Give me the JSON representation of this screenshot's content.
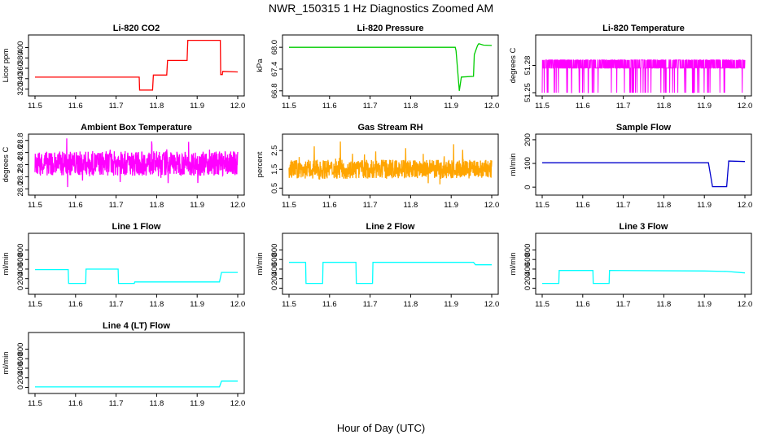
{
  "figure": {
    "title": "NWR_150315  1 Hz Diagnostics Zoomed AM",
    "xlabel": "Hour of Day (UTC)"
  },
  "chart_data": [
    {
      "type": "line",
      "title": "Li-820 CO2",
      "ylabel": "Licor ppm",
      "color": "#ff0000",
      "xlim": [
        11.5,
        12.0
      ],
      "ylim": [
        313,
        418
      ],
      "yticks": [
        "320",
        "340",
        "360",
        "380",
        "400"
      ],
      "xticks": [
        "11.5",
        "11.6",
        "11.7",
        "11.8",
        "11.9",
        "12.0"
      ],
      "series": [
        {
          "x": [
            11.5,
            11.69,
            11.757,
            11.758,
            11.79,
            11.792,
            11.825,
            11.827,
            11.875,
            11.877,
            11.957,
            11.958,
            11.962,
            11.963,
            12.0
          ],
          "y": [
            343,
            343,
            343,
            318,
            318,
            347,
            347,
            375,
            375,
            414,
            414,
            348,
            348,
            354,
            353
          ]
        }
      ]
    },
    {
      "type": "line",
      "title": "Li-820 Pressure",
      "ylabel": "kPa",
      "color": "#00cc00",
      "xlim": [
        11.5,
        12.0
      ],
      "ylim": [
        66.75,
        68.25
      ],
      "yticks": [
        "66.8",
        "67.4",
        "68.0"
      ],
      "xticks": [
        "11.5",
        "11.6",
        "11.7",
        "11.8",
        "11.9",
        "12.0"
      ],
      "series": [
        {
          "x": [
            11.5,
            11.91,
            11.912,
            11.92,
            11.925,
            11.955,
            11.957,
            11.965,
            11.968,
            11.98,
            12.0
          ],
          "y": [
            68.0,
            68.0,
            67.9,
            66.8,
            67.18,
            67.2,
            67.8,
            68.05,
            68.1,
            68.06,
            68.05
          ]
        }
      ]
    },
    {
      "type": "line",
      "title": "Li-820 Temperature",
      "ylabel": "degrees C",
      "color": "#ff00ff",
      "xlim": [
        11.5,
        12.0
      ],
      "ylim": [
        51.25,
        51.31
      ],
      "yticks": [
        "51.25",
        "51.28"
      ],
      "xticks": [
        "11.5",
        "11.6",
        "11.7",
        "11.8",
        "11.9",
        "12.0"
      ],
      "series": [
        {
          "x": [
            11.5,
            12.0
          ],
          "y": [
            51.28,
            51.28
          ]
        }
      ]
    },
    {
      "type": "line",
      "title": "Ambient Box Temperature",
      "ylabel": "degrees C",
      "color": "#ff00ff",
      "xlim": [
        11.5,
        12.0
      ],
      "ylim": [
        27.95,
        28.85
      ],
      "yticks": [
        "28.0",
        "28.2",
        "28.4",
        "28.6",
        "28.8"
      ],
      "xticks": [
        "11.5",
        "11.6",
        "11.7",
        "11.8",
        "11.9",
        "12.0"
      ],
      "series": [
        {
          "x": [
            11.5,
            12.0
          ],
          "y": [
            28.42,
            28.42
          ]
        }
      ]
    },
    {
      "type": "line",
      "title": "Gas Stream RH",
      "ylabel": "percent",
      "color": "#ffa500",
      "xlim": [
        11.5,
        12.0
      ],
      "ylim": [
        0.3,
        3.2
      ],
      "yticks": [
        "0.5",
        "1.5",
        "2.5"
      ],
      "xticks": [
        "11.5",
        "11.6",
        "11.7",
        "11.8",
        "11.9",
        "12.0"
      ],
      "series": [
        {
          "x": [
            11.5,
            12.0
          ],
          "y": [
            1.5,
            1.5
          ]
        }
      ]
    },
    {
      "type": "line",
      "title": "Sample Flow",
      "ylabel": "ml/min",
      "color": "#0000cd",
      "xlim": [
        11.5,
        12.0
      ],
      "ylim": [
        -20,
        210
      ],
      "yticks": [
        "0",
        "100",
        "200"
      ],
      "xticks": [
        "11.5",
        "11.6",
        "11.7",
        "11.8",
        "11.9",
        "12.0"
      ],
      "series": [
        {
          "x": [
            11.5,
            11.91,
            11.92,
            11.955,
            11.96,
            12.0
          ],
          "y": [
            103,
            103,
            2,
            2,
            110,
            108
          ]
        }
      ]
    },
    {
      "type": "line",
      "title": "Line 1 Flow",
      "ylabel": "ml/min",
      "color": "#00ffff",
      "xlim": [
        11.5,
        12.0
      ],
      "ylim": [
        -60,
        1080
      ],
      "yticks": [
        "0",
        "200",
        "400",
        "600",
        "800"
      ],
      "xticks": [
        "11.5",
        "11.6",
        "11.7",
        "11.8",
        "11.9",
        "12.0"
      ],
      "series": [
        {
          "x": [
            11.5,
            11.582,
            11.583,
            11.625,
            11.626,
            11.705,
            11.706,
            11.745,
            11.746,
            11.955,
            11.96,
            12.0
          ],
          "y": [
            390,
            390,
            100,
            100,
            400,
            400,
            100,
            100,
            130,
            130,
            330,
            330
          ]
        }
      ]
    },
    {
      "type": "line",
      "title": "Line 2 Flow",
      "ylabel": "ml/min",
      "color": "#00ffff",
      "xlim": [
        11.5,
        12.0
      ],
      "ylim": [
        -60,
        1080
      ],
      "yticks": [
        "0",
        "200",
        "400",
        "600",
        "800"
      ],
      "xticks": [
        "11.5",
        "11.6",
        "11.7",
        "11.8",
        "11.9",
        "12.0"
      ],
      "series": [
        {
          "x": [
            11.5,
            11.541,
            11.542,
            11.583,
            11.584,
            11.665,
            11.666,
            11.706,
            11.707,
            11.955,
            11.96,
            12.0
          ],
          "y": [
            540,
            540,
            100,
            100,
            540,
            540,
            100,
            100,
            540,
            540,
            490,
            490
          ]
        }
      ]
    },
    {
      "type": "line",
      "title": "Line 3 Flow",
      "ylabel": "ml/min",
      "color": "#00ffff",
      "xlim": [
        11.5,
        12.0
      ],
      "ylim": [
        -60,
        1080
      ],
      "yticks": [
        "0",
        "200",
        "400",
        "600",
        "800"
      ],
      "xticks": [
        "11.5",
        "11.6",
        "11.7",
        "11.8",
        "11.9",
        "12.0"
      ],
      "series": [
        {
          "x": [
            11.5,
            11.541,
            11.542,
            11.625,
            11.626,
            11.665,
            11.666,
            11.9,
            11.955,
            12.0
          ],
          "y": [
            100,
            100,
            370,
            370,
            100,
            100,
            370,
            360,
            350,
            320
          ]
        }
      ]
    },
    {
      "type": "line",
      "title": "Line 4 (LT) Flow",
      "ylabel": "ml/min",
      "color": "#00ffff",
      "xlim": [
        11.5,
        12.0
      ],
      "ylim": [
        -60,
        1080
      ],
      "yticks": [
        "0",
        "200",
        "400",
        "600",
        "800"
      ],
      "xticks": [
        "11.5",
        "11.6",
        "11.7",
        "11.8",
        "11.9",
        "12.0"
      ],
      "series": [
        {
          "x": [
            11.5,
            11.955,
            11.96,
            12.0
          ],
          "y": [
            10,
            10,
            130,
            130
          ]
        }
      ]
    }
  ]
}
